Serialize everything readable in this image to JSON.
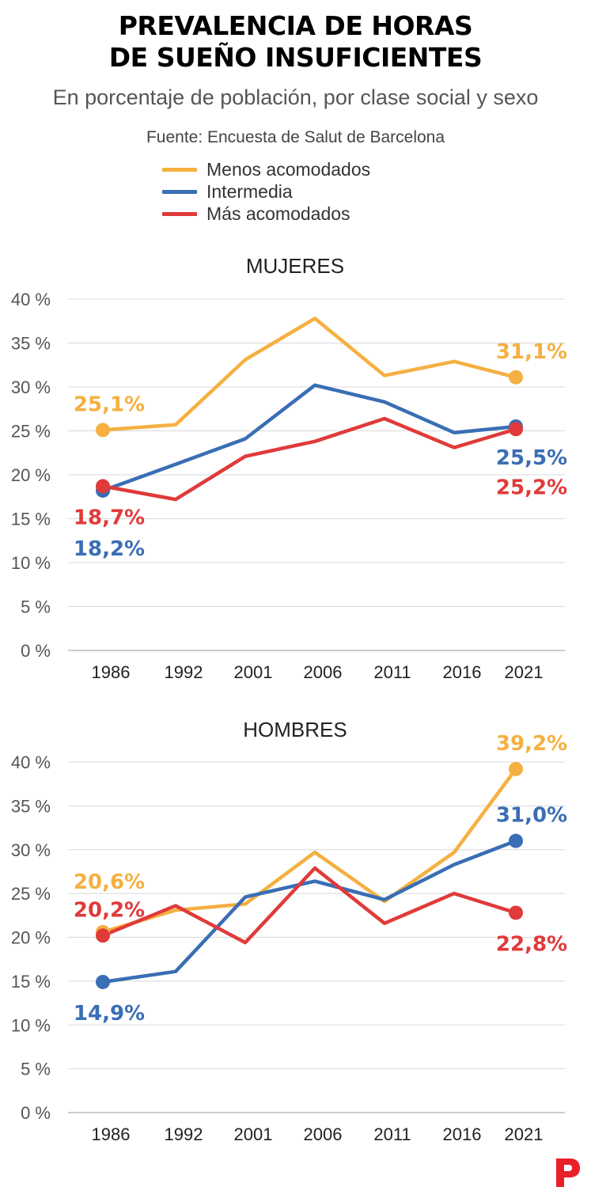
{
  "title_line1": "PREVALENCIA DE HORAS",
  "title_line2": "DE SUEÑO INSUFICIENTES",
  "subtitle": "En porcentaje de población, por clase social y sexo",
  "source": "Fuente: Encuesta de Salut de Barcelona",
  "legend": [
    {
      "label": "Menos acomodados",
      "color": "#F5B041"
    },
    {
      "label": "Intermedia",
      "color": "#3A6EB5"
    },
    {
      "label": "Más acomodados",
      "color": "#E03A3A"
    }
  ],
  "chart_data": [
    {
      "type": "line",
      "title": "MUJERES",
      "categories": [
        "1986",
        "1992",
        "2001",
        "2006",
        "2011",
        "2016",
        "2021"
      ],
      "ylim": [
        0,
        40
      ],
      "yticks": [
        "0 %",
        "5 %",
        "10 %",
        "15 %",
        "20 %",
        "25 %",
        "30 %",
        "35 %",
        "40 %"
      ],
      "series": [
        {
          "name": "Menos acomodados",
          "color": "#F5B041",
          "values": [
            25.1,
            25.7,
            33.1,
            37.8,
            31.3,
            32.9,
            31.1
          ]
        },
        {
          "name": "Intermedia",
          "color": "#3A6EB5",
          "values": [
            18.2,
            21.2,
            24.1,
            30.2,
            28.3,
            24.8,
            25.5
          ]
        },
        {
          "name": "Más acomodados",
          "color": "#E03A3A",
          "values": [
            18.7,
            17.2,
            22.1,
            23.8,
            26.4,
            23.1,
            25.2
          ]
        }
      ],
      "labels": [
        {
          "text": "25,1%",
          "series": 0,
          "index": 0,
          "pos": "above"
        },
        {
          "text": "31,1%",
          "series": 0,
          "index": 6,
          "pos": "above"
        },
        {
          "text": "18,7%",
          "series": 2,
          "index": 0,
          "pos": "below1"
        },
        {
          "text": "18,2%",
          "series": 1,
          "index": 0,
          "pos": "below2"
        },
        {
          "text": "25,5%",
          "series": 1,
          "index": 6,
          "pos": "below1"
        },
        {
          "text": "25,2%",
          "series": 2,
          "index": 6,
          "pos": "below2"
        }
      ]
    },
    {
      "type": "line",
      "title": "HOMBRES",
      "categories": [
        "1986",
        "1992",
        "2001",
        "2006",
        "2011",
        "2016",
        "2021"
      ],
      "ylim": [
        0,
        40
      ],
      "yticks": [
        "0 %",
        "5 %",
        "10 %",
        "15 %",
        "20 %",
        "25 %",
        "30 %",
        "35 %",
        "40 %"
      ],
      "series": [
        {
          "name": "Menos acomodados",
          "color": "#F5B041",
          "values": [
            20.6,
            23.1,
            23.8,
            29.7,
            24.1,
            29.7,
            39.2
          ]
        },
        {
          "name": "Intermedia",
          "color": "#3A6EB5",
          "values": [
            14.9,
            16.1,
            24.6,
            26.4,
            24.3,
            28.3,
            31.0
          ]
        },
        {
          "name": "Más acomodados",
          "color": "#E03A3A",
          "values": [
            20.2,
            23.6,
            19.4,
            27.9,
            21.6,
            25.0,
            22.8
          ]
        }
      ],
      "labels": [
        {
          "text": "20,6%",
          "series": 0,
          "index": 0,
          "pos": "above2"
        },
        {
          "text": "20,2%",
          "series": 2,
          "index": 0,
          "pos": "above"
        },
        {
          "text": "14,9%",
          "series": 1,
          "index": 0,
          "pos": "below1"
        },
        {
          "text": "39,2%",
          "series": 0,
          "index": 6,
          "pos": "above"
        },
        {
          "text": "31,0%",
          "series": 1,
          "index": 6,
          "pos": "above"
        },
        {
          "text": "22,8%",
          "series": 2,
          "index": 6,
          "pos": "below1"
        }
      ]
    }
  ]
}
